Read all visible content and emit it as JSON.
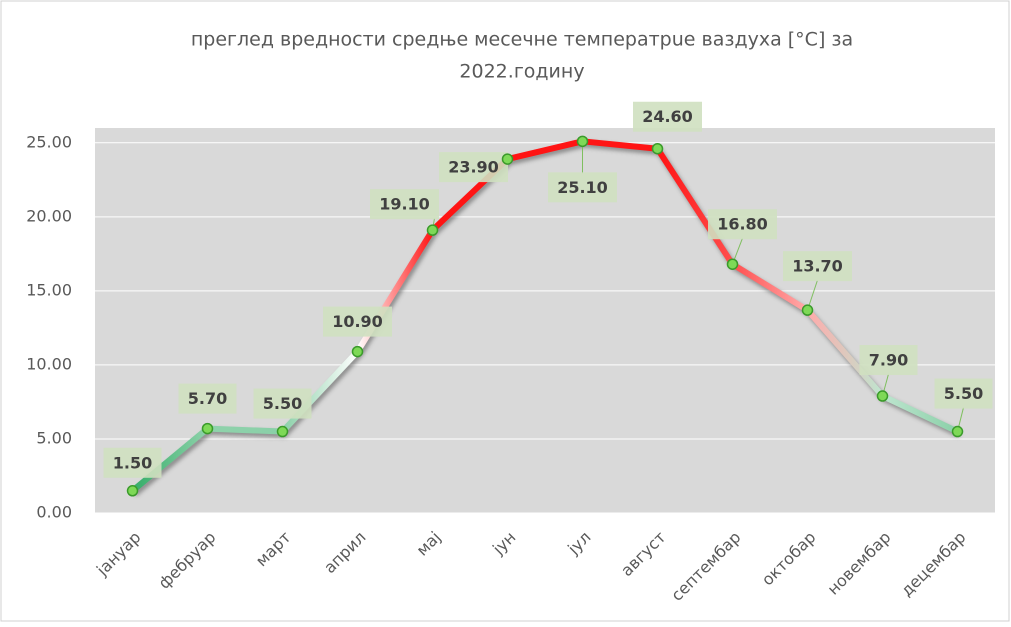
{
  "chart_data": {
    "type": "line",
    "title": [
      "преглед вредности средње месечне температрue ваздуха [°C]   за",
      "2022.годину"
    ],
    "categories": [
      "јануар",
      "фебруар",
      "март",
      "април",
      "мај",
      "јун",
      "јул",
      "август",
      "септембар",
      "октобар",
      "новембар",
      "децембар"
    ],
    "values": [
      1.5,
      5.7,
      5.5,
      10.9,
      19.1,
      23.9,
      25.1,
      24.6,
      16.8,
      13.7,
      7.9,
      5.5
    ],
    "value_labels": [
      "1.50",
      "5.70",
      "5.50",
      "10.90",
      "19.10",
      "23.90",
      "25.10",
      "24.60",
      "16.80",
      "13.70",
      "7.90",
      "5.50"
    ],
    "ylim": [
      0,
      26
    ],
    "yticks": [
      {
        "value": 0,
        "label": "0.00"
      },
      {
        "value": 5,
        "label": "5.00"
      },
      {
        "value": 10,
        "label": "10.00"
      },
      {
        "value": 15,
        "label": "15.00"
      },
      {
        "value": 20,
        "label": "20.00"
      },
      {
        "value": 25,
        "label": "25.00"
      }
    ],
    "grid": true
  }
}
